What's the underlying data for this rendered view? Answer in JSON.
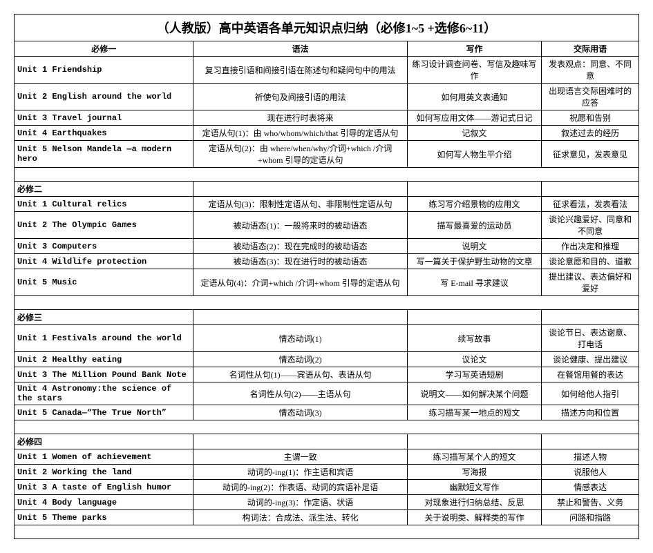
{
  "title": "（人教版）高中英语各单元知识点归纳（必修1~5 +选修6~11）",
  "headers": {
    "unit": "必修一",
    "grammar": "语法",
    "writing": "写作",
    "comm": "交际用语"
  },
  "sections": [
    {
      "name": "必修一",
      "rows": [
        {
          "unit": "Unit 1 Friendship",
          "grammar": "复习直接引语和间接引语在陈述句和疑问句中的用法",
          "writing": "练习设计调查问卷、写信及趣味写作",
          "comm": "发表观点：同意、不同意"
        },
        {
          "unit": "Unit 2 English around the world",
          "grammar": "祈使句及间接引语的用法",
          "writing": "如何用英文表通知",
          "comm": "出现语言交际困难时的应答"
        },
        {
          "unit": "Unit 3 Travel journal",
          "grammar": "现在进行时表将来",
          "writing": "如何写应用文体——游记式日记",
          "comm": "祝愿和告别"
        },
        {
          "unit": "Unit 4 Earthquakes",
          "grammar": "定语从句(1)：由 who/whom/which/that 引导的定语从句",
          "writing": "记叙文",
          "comm": "叙述过去的经历"
        },
        {
          "unit": "Unit 5 Nelson Mandela —a modern hero",
          "grammar": "定语从句(2)：由 where/when/why/介词+which /介词+whom 引导的定语从句",
          "writing": "如何写人物生平介绍",
          "comm": "征求意见，发表意见"
        }
      ]
    },
    {
      "name": "必修二",
      "rows": [
        {
          "unit": "Unit 1 Cultural relics",
          "grammar": "定语从句(3)：限制性定语从句、非限制性定语从句",
          "writing": "练习写介绍景物的应用文",
          "comm": "征求看法，发表看法"
        },
        {
          "unit": "Unit 2 The Olympic Games",
          "grammar": "被动语态(1)：一般将来时的被动语态",
          "writing": "描写最喜爱的运动员",
          "comm": "谈论兴趣爱好、同意和不同意"
        },
        {
          "unit": "Unit 3 Computers",
          "grammar": "被动语态(2)：现在完成时的被动语态",
          "writing": "说明文",
          "comm": "作出决定和推理"
        },
        {
          "unit": "Unit 4 Wildlife protection",
          "grammar": "被动语态(3)：现在进行时的被动语态",
          "writing": "写一篇关于保护野生动物的文章",
          "comm": "谈论意愿和目的、道歉"
        },
        {
          "unit": "Unit 5 Music",
          "grammar": "定语从句(4)：介词+which /介词+whom 引导的定语从句",
          "writing": "写 E-mail 寻求建议",
          "comm": "提出建议、表达偏好和爱好"
        }
      ]
    },
    {
      "name": "必修三",
      "rows": [
        {
          "unit": "Unit 1 Festivals around the world",
          "grammar": "情态动词(1)",
          "writing": "续写故事",
          "comm": "谈论节日、表达谢意、打电话"
        },
        {
          "unit": "Unit 2 Healthy eating",
          "grammar": "情态动词(2)",
          "writing": "议论文",
          "comm": "谈论健康、提出建议"
        },
        {
          "unit": "Unit 3 The Million Pound Bank Note",
          "grammar": "名词性从句(1)——宾语从句、表语从句",
          "writing": "学习写英语短剧",
          "comm": "在餐馆用餐的表达"
        },
        {
          "unit": "Unit 4 Astronomy:the science of the stars",
          "grammar": "名词性从句(2)——主语从句",
          "writing": "说明文——如何解决某个问题",
          "comm": "如何给他人指引"
        },
        {
          "unit": "Unit 5 Canada—“The True North”",
          "grammar": "情态动词(3)",
          "writing": "练习描写某一地点的短文",
          "comm": "描述方向和位置"
        }
      ]
    },
    {
      "name": "必修四",
      "rows": [
        {
          "unit": "Unit 1 Women of achievement",
          "grammar": "主谓一致",
          "writing": "练习描写某个人的短文",
          "comm": "描述人物"
        },
        {
          "unit": "Unit 2 Working the land",
          "grammar": "动词的-ing(1)：作主语和宾语",
          "writing": "写海报",
          "comm": "说服他人"
        },
        {
          "unit": "Unit 3 A taste of English humor",
          "grammar": "动词的-ing(2)：作表语、动词的宾语补足语",
          "writing": "幽默短文写作",
          "comm": "情感表达"
        },
        {
          "unit": "Unit 4 Body language",
          "grammar": "动词的-ing(3)：作定语、状语",
          "writing": "对现象进行归纳总结、反思",
          "comm": "禁止和警告、义务"
        },
        {
          "unit": "Unit 5 Theme parks",
          "grammar": "构词法：合成法、派生法、转化",
          "writing": "关于说明类、解释类的写作",
          "comm": "问路和指路"
        }
      ]
    }
  ]
}
